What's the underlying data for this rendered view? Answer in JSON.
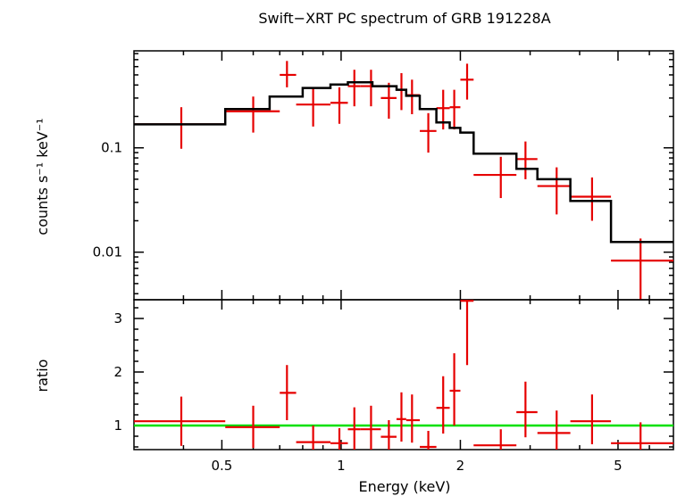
{
  "chart_data": [
    {
      "panel": "spectrum",
      "type": "scatter",
      "title": "Swift−XRT PC spectrum of GRB 191228A",
      "ylabel": "counts s⁻¹ keV⁻¹",
      "xlabel": "",
      "xscale": "log",
      "yscale": "log",
      "xlim": [
        0.3,
        6.9
      ],
      "ylim": [
        0.0035,
        0.85
      ],
      "xticks": [
        0.5,
        1,
        2,
        5
      ],
      "yticks": [
        0.01,
        0.1
      ],
      "ytick_labels": [
        "0.01",
        "0.1"
      ],
      "series": [
        {
          "role": "data",
          "color": "#e60000",
          "points": [
            {
              "x": 0.395,
              "xerr": [
                0.3,
                0.51
              ],
              "y": 0.168,
              "yerr": [
                0.098,
                0.245
              ]
            },
            {
              "x": 0.6,
              "xerr": [
                0.51,
                0.7
              ],
              "y": 0.224,
              "yerr": [
                0.14,
                0.31
              ]
            },
            {
              "x": 0.73,
              "xerr": [
                0.7,
                0.77
              ],
              "y": 0.5,
              "yerr": [
                0.38,
                0.68
              ]
            },
            {
              "x": 0.85,
              "xerr": [
                0.77,
                0.94
              ],
              "y": 0.26,
              "yerr": [
                0.16,
                0.38
              ]
            },
            {
              "x": 0.99,
              "xerr": [
                0.94,
                1.04
              ],
              "y": 0.27,
              "yerr": [
                0.17,
                0.38
              ]
            },
            {
              "x": 1.08,
              "xerr": [
                1.04,
                1.12
              ],
              "y": 0.39,
              "yerr": [
                0.25,
                0.56
              ]
            },
            {
              "x": 1.19,
              "xerr": [
                1.12,
                1.26
              ],
              "y": 0.39,
              "yerr": [
                0.25,
                0.56
              ]
            },
            {
              "x": 1.32,
              "xerr": [
                1.26,
                1.38
              ],
              "y": 0.3,
              "yerr": [
                0.19,
                0.42
              ]
            },
            {
              "x": 1.42,
              "xerr": [
                1.38,
                1.46
              ],
              "y": 0.36,
              "yerr": [
                0.23,
                0.52
              ]
            },
            {
              "x": 1.51,
              "xerr": [
                1.46,
                1.58
              ],
              "y": 0.32,
              "yerr": [
                0.21,
                0.45
              ]
            },
            {
              "x": 1.66,
              "xerr": [
                1.58,
                1.74
              ],
              "y": 0.145,
              "yerr": [
                0.09,
                0.215
              ]
            },
            {
              "x": 1.81,
              "xerr": [
                1.74,
                1.88
              ],
              "y": 0.24,
              "yerr": [
                0.15,
                0.36
              ]
            },
            {
              "x": 1.93,
              "xerr": [
                1.88,
                2.0
              ],
              "y": 0.245,
              "yerr": [
                0.15,
                0.36
              ]
            },
            {
              "x": 2.08,
              "xerr": [
                2.0,
                2.16
              ],
              "y": 0.45,
              "yerr": [
                0.29,
                0.64
              ]
            },
            {
              "x": 2.53,
              "xerr": [
                2.16,
                2.77
              ],
              "y": 0.055,
              "yerr": [
                0.033,
                0.082
              ]
            },
            {
              "x": 2.92,
              "xerr": [
                2.77,
                3.13
              ],
              "y": 0.078,
              "yerr": [
                0.05,
                0.115
              ]
            },
            {
              "x": 3.5,
              "xerr": [
                3.13,
                3.79
              ],
              "y": 0.043,
              "yerr": [
                0.023,
                0.065
              ]
            },
            {
              "x": 4.3,
              "xerr": [
                3.79,
                4.8
              ],
              "y": 0.034,
              "yerr": [
                0.02,
                0.052
              ]
            },
            {
              "x": 5.7,
              "xerr": [
                4.8,
                6.9
              ],
              "y": 0.0083,
              "yerr": [
                0.003,
                0.0135
              ]
            }
          ]
        },
        {
          "role": "model",
          "color": "#000000",
          "steps": [
            {
              "x0": 0.3,
              "x1": 0.51,
              "y": 0.168
            },
            {
              "x0": 0.51,
              "x1": 0.66,
              "y": 0.235
            },
            {
              "x0": 0.66,
              "x1": 0.8,
              "y": 0.31
            },
            {
              "x0": 0.8,
              "x1": 0.94,
              "y": 0.375
            },
            {
              "x0": 0.94,
              "x1": 1.04,
              "y": 0.405
            },
            {
              "x0": 1.04,
              "x1": 1.2,
              "y": 0.425
            },
            {
              "x0": 1.2,
              "x1": 1.38,
              "y": 0.39
            },
            {
              "x0": 1.38,
              "x1": 1.46,
              "y": 0.36
            },
            {
              "x0": 1.46,
              "x1": 1.58,
              "y": 0.315
            },
            {
              "x0": 1.58,
              "x1": 1.74,
              "y": 0.235
            },
            {
              "x0": 1.74,
              "x1": 1.88,
              "y": 0.175
            },
            {
              "x0": 1.88,
              "x1": 2.0,
              "y": 0.155
            },
            {
              "x0": 2.0,
              "x1": 2.16,
              "y": 0.14
            },
            {
              "x0": 2.16,
              "x1": 2.77,
              "y": 0.088
            },
            {
              "x0": 2.77,
              "x1": 3.13,
              "y": 0.063
            },
            {
              "x0": 3.13,
              "x1": 3.79,
              "y": 0.05
            },
            {
              "x0": 3.79,
              "x1": 4.8,
              "y": 0.031
            },
            {
              "x0": 4.8,
              "x1": 6.9,
              "y": 0.0125
            }
          ]
        }
      ]
    },
    {
      "panel": "ratio",
      "type": "scatter",
      "ylabel": "ratio",
      "xlabel": "Energy (keV)",
      "xscale": "log",
      "yscale": "linear",
      "xlim": [
        0.3,
        6.9
      ],
      "ylim": [
        0.55,
        3.35
      ],
      "xticks": [
        0.5,
        1,
        2,
        5
      ],
      "xtick_labels": [
        "0.5",
        "1",
        "2",
        "5"
      ],
      "yticks": [
        1,
        2,
        3
      ],
      "ytick_labels": [
        "1",
        "2",
        "3"
      ],
      "reference_line": {
        "y": 1,
        "color": "#00e000"
      },
      "series": [
        {
          "role": "data",
          "color": "#e60000",
          "points": [
            {
              "x": 0.395,
              "xerr": [
                0.3,
                0.51
              ],
              "y": 1.08,
              "yerr": [
                0.62,
                1.54
              ]
            },
            {
              "x": 0.6,
              "xerr": [
                0.51,
                0.7
              ],
              "y": 0.97,
              "yerr": [
                0.58,
                1.37
              ]
            },
            {
              "x": 0.73,
              "xerr": [
                0.7,
                0.77
              ],
              "y": 1.61,
              "yerr": [
                1.1,
                2.13
              ]
            },
            {
              "x": 0.85,
              "xerr": [
                0.77,
                0.94
              ],
              "y": 0.69,
              "yerr": [
                0.42,
                1.0
              ]
            },
            {
              "x": 0.99,
              "xerr": [
                0.94,
                1.04
              ],
              "y": 0.67,
              "yerr": [
                0.4,
                0.95
              ]
            },
            {
              "x": 1.08,
              "xerr": [
                1.04,
                1.12
              ],
              "y": 0.93,
              "yerr": [
                0.55,
                1.34
              ]
            },
            {
              "x": 1.19,
              "xerr": [
                1.12,
                1.26
              ],
              "y": 0.93,
              "yerr": [
                0.55,
                1.37
              ]
            },
            {
              "x": 1.32,
              "xerr": [
                1.26,
                1.38
              ],
              "y": 0.79,
              "yerr": [
                0.5,
                1.1
              ]
            },
            {
              "x": 1.42,
              "xerr": [
                1.38,
                1.46
              ],
              "y": 1.12,
              "yerr": [
                0.7,
                1.62
              ]
            },
            {
              "x": 1.51,
              "xerr": [
                1.46,
                1.58
              ],
              "y": 1.1,
              "yerr": [
                0.68,
                1.58
              ]
            },
            {
              "x": 1.66,
              "xerr": [
                1.58,
                1.74
              ],
              "y": 0.6,
              "yerr": [
                0.4,
                0.9
              ]
            },
            {
              "x": 1.81,
              "xerr": [
                1.74,
                1.88
              ],
              "y": 1.33,
              "yerr": [
                0.85,
                1.92
              ]
            },
            {
              "x": 1.93,
              "xerr": [
                1.88,
                2.0
              ],
              "y": 1.65,
              "yerr": [
                1.0,
                2.35
              ]
            },
            {
              "x": 2.08,
              "xerr": [
                2.0,
                2.16
              ],
              "y": 3.33,
              "yerr": [
                2.13,
                3.4
              ]
            },
            {
              "x": 2.53,
              "xerr": [
                2.16,
                2.77
              ],
              "y": 0.63,
              "yerr": [
                0.4,
                0.93
              ]
            },
            {
              "x": 2.92,
              "xerr": [
                2.77,
                3.13
              ],
              "y": 1.25,
              "yerr": [
                0.78,
                1.82
              ]
            },
            {
              "x": 3.5,
              "xerr": [
                3.13,
                3.79
              ],
              "y": 0.86,
              "yerr": [
                0.48,
                1.28
              ]
            },
            {
              "x": 4.3,
              "xerr": [
                3.79,
                4.8
              ],
              "y": 1.08,
              "yerr": [
                0.65,
                1.58
              ]
            },
            {
              "x": 5.7,
              "xerr": [
                4.8,
                6.9
              ],
              "y": 0.67,
              "yerr": [
                0.3,
                1.06
              ]
            }
          ]
        }
      ]
    }
  ]
}
